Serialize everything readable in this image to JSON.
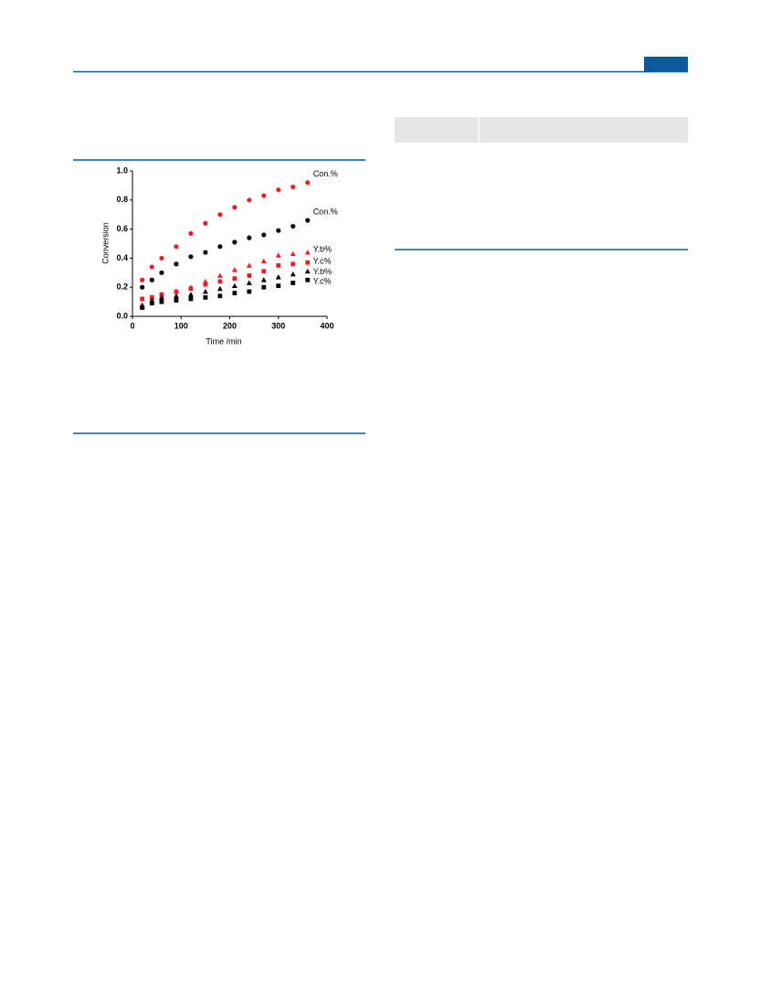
{
  "chart_data": {
    "type": "scatter",
    "xlabel": "Time /min",
    "ylabel": "Conversion",
    "x": [
      20,
      40,
      60,
      90,
      120,
      150,
      180,
      210,
      240,
      270,
      300,
      330,
      360
    ],
    "xlim": [
      0,
      400
    ],
    "xticks": [
      0,
      100,
      200,
      300,
      400
    ],
    "ylim": [
      0,
      1
    ],
    "yticks": [
      {
        "value": 0,
        "label": "0.0"
      },
      {
        "value": 0.2,
        "label": "0.2"
      },
      {
        "value": 0.4,
        "label": "0.4"
      },
      {
        "value": 0.6,
        "label": "0.6"
      },
      {
        "value": 0.8,
        "label": "0.8"
      },
      {
        "value": 1,
        "label": "1.0"
      }
    ],
    "series": [
      {
        "name": "Con.%",
        "color": "#e8202a",
        "marker": "circle",
        "values": [
          0.25,
          0.34,
          0.4,
          0.48,
          0.57,
          0.64,
          0.7,
          0.75,
          0.8,
          0.83,
          0.87,
          0.89,
          0.92
        ]
      },
      {
        "name": "Con.%",
        "color": "#000000",
        "marker": "circle",
        "values": [
          0.2,
          0.25,
          0.3,
          0.36,
          0.41,
          0.44,
          0.48,
          0.51,
          0.54,
          0.56,
          0.59,
          0.62,
          0.66
        ]
      },
      {
        "name": "Y.b%",
        "color": "#e8202a",
        "marker": "triangle",
        "values": [
          0.08,
          0.13,
          0.15,
          0.17,
          0.2,
          0.24,
          0.28,
          0.32,
          0.35,
          0.38,
          0.42,
          0.43,
          0.44
        ]
      },
      {
        "name": "Y.c%",
        "color": "#e8202a",
        "marker": "square",
        "values": [
          0.12,
          0.13,
          0.15,
          0.17,
          0.19,
          0.22,
          0.24,
          0.26,
          0.28,
          0.31,
          0.35,
          0.36,
          0.37
        ]
      },
      {
        "name": "Y.b%",
        "color": "#000000",
        "marker": "triangle",
        "values": [
          0.07,
          0.11,
          0.13,
          0.14,
          0.15,
          0.17,
          0.19,
          0.21,
          0.23,
          0.25,
          0.27,
          0.29,
          0.31
        ]
      },
      {
        "name": "Y.c%",
        "color": "#000000",
        "marker": "square",
        "values": [
          0.06,
          0.09,
          0.1,
          0.11,
          0.12,
          0.13,
          0.14,
          0.16,
          0.17,
          0.2,
          0.21,
          0.23,
          0.25
        ]
      }
    ]
  }
}
